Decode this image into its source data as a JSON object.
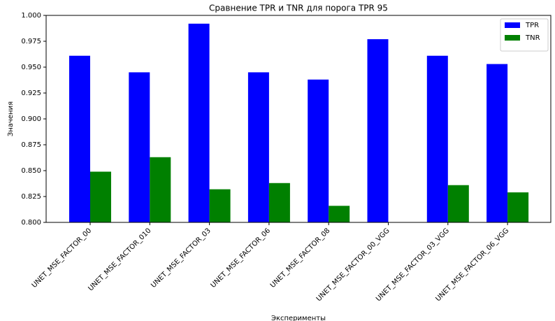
{
  "chart_data": {
    "type": "bar",
    "title": "Сравнение TPR и TNR для порога TPR 95",
    "x_label": "Эксперименты",
    "y_label": "Значения",
    "categories": [
      "UNET_MSE_FACTOR_00",
      "UNET_MSE_FACTOR_010",
      "UNET_MSE_FACTOR_03",
      "UNET_MSE_FACTOR_06",
      "UNET_MSE_FACTOR_08",
      "UNET_MSE_FACTOR_00_VGG",
      "UNET_MSE_FACTOR_03_VGG",
      "UNET_MSE_FACTOR_06_VGG"
    ],
    "series": [
      {
        "name": "TPR",
        "color": "#0000ff",
        "values": [
          0.961,
          0.945,
          0.992,
          0.945,
          0.938,
          0.977,
          0.961,
          0.953
        ]
      },
      {
        "name": "TNR",
        "color": "#008000",
        "values": [
          0.849,
          0.863,
          0.832,
          0.838,
          0.816,
          null,
          0.836,
          0.829
        ]
      }
    ],
    "ylim": [
      0.8,
      1.0
    ],
    "yticks": [
      {
        "value": 0.8,
        "label": "0.800"
      },
      {
        "value": 0.825,
        "label": "0.825"
      },
      {
        "value": 0.85,
        "label": "0.850"
      },
      {
        "value": 0.875,
        "label": "0.875"
      },
      {
        "value": 0.9,
        "label": "0.900"
      },
      {
        "value": 0.925,
        "label": "0.925"
      },
      {
        "value": 0.95,
        "label": "0.950"
      },
      {
        "value": 0.975,
        "label": "0.975"
      },
      {
        "value": 1.0,
        "label": "1.000"
      }
    ],
    "legend": "upper right"
  }
}
